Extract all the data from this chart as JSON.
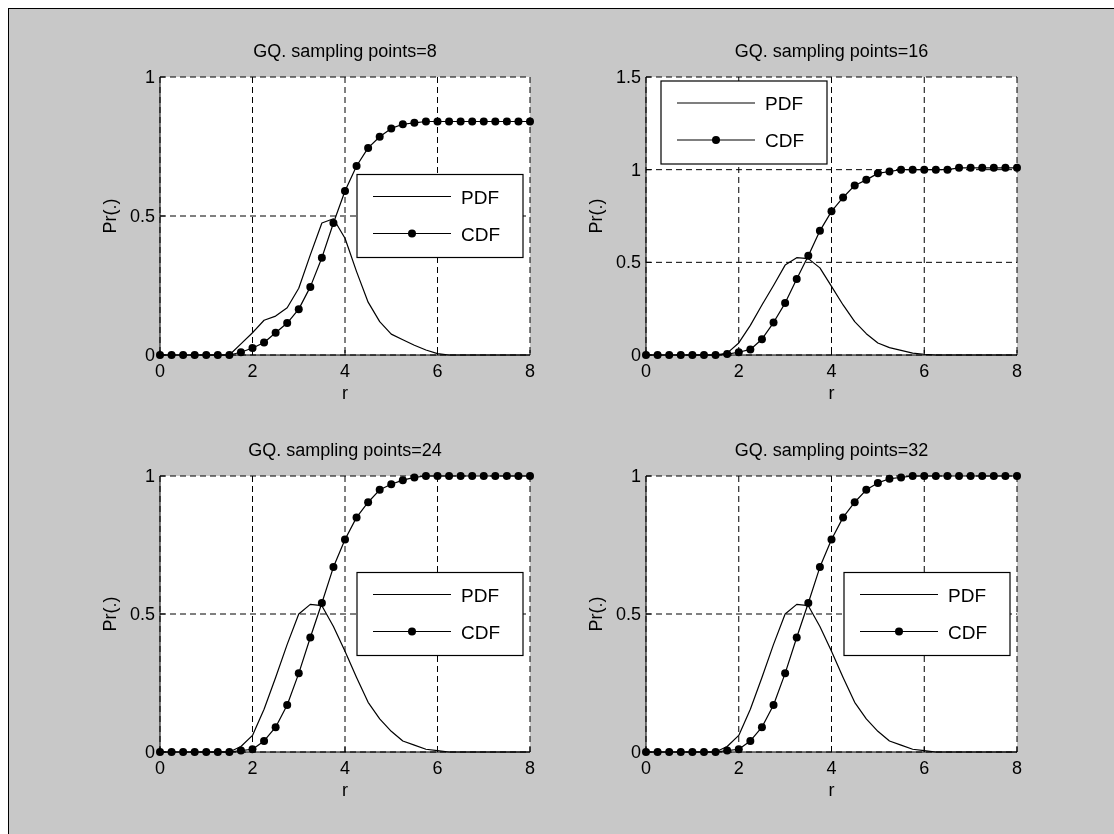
{
  "chart_data": [
    {
      "type": "line",
      "title": "GQ. sampling points=8",
      "xlabel": "r",
      "ylabel": "Pr(.)",
      "xlim": [
        0,
        8
      ],
      "ylim": [
        0,
        1
      ],
      "xticks": [
        0,
        2,
        4,
        6,
        8
      ],
      "yticks": [
        0,
        0.5,
        1
      ],
      "grid": true,
      "legend": "right",
      "x": [
        0,
        0.25,
        0.5,
        0.75,
        1,
        1.25,
        1.5,
        1.75,
        2,
        2.25,
        2.5,
        2.75,
        3,
        3.25,
        3.5,
        3.75,
        4,
        4.25,
        4.5,
        4.75,
        5,
        5.25,
        5.5,
        5.75,
        6,
        6.25,
        6.5,
        6.75,
        7,
        7.25,
        7.5,
        7.75,
        8
      ],
      "series": [
        {
          "name": "PDF",
          "color": "#000000",
          "marker": "none",
          "values": [
            0,
            0,
            0,
            0,
            0,
            0,
            0,
            0.04,
            0.08,
            0.125,
            0.14,
            0.17,
            0.24,
            0.36,
            0.475,
            0.49,
            0.42,
            0.3,
            0.19,
            0.12,
            0.075,
            0.055,
            0.035,
            0.018,
            0.005,
            0,
            0,
            0,
            0,
            0,
            0,
            0,
            0
          ]
        },
        {
          "name": "CDF",
          "color": "#000000",
          "marker": "circle",
          "values": [
            0,
            0,
            0,
            0,
            0,
            0,
            0,
            0.01,
            0.025,
            0.045,
            0.08,
            0.115,
            0.165,
            0.245,
            0.35,
            0.475,
            0.59,
            0.68,
            0.745,
            0.785,
            0.815,
            0.83,
            0.835,
            0.84,
            0.84,
            0.84,
            0.84,
            0.84,
            0.84,
            0.84,
            0.84,
            0.84,
            0.84
          ]
        }
      ]
    },
    {
      "type": "line",
      "title": "GQ. sampling points=16",
      "xlabel": "r",
      "ylabel": "Pr(.)",
      "xlim": [
        0,
        8
      ],
      "ylim": [
        0,
        1.5
      ],
      "xticks": [
        0,
        2,
        4,
        6,
        8
      ],
      "yticks": [
        0,
        0.5,
        1,
        1.5
      ],
      "grid": true,
      "legend": "top left",
      "x": [
        0,
        0.25,
        0.5,
        0.75,
        1,
        1.25,
        1.5,
        1.75,
        2,
        2.25,
        2.5,
        2.75,
        3,
        3.25,
        3.5,
        3.75,
        4,
        4.25,
        4.5,
        4.75,
        5,
        5.25,
        5.5,
        5.75,
        6,
        6.25,
        6.5,
        6.75,
        7,
        7.25,
        7.5,
        7.75,
        8
      ],
      "series": [
        {
          "name": "PDF",
          "color": "#000000",
          "marker": "none",
          "values": [
            0,
            0,
            0,
            0,
            0,
            0,
            0,
            0.01,
            0.065,
            0.16,
            0.27,
            0.375,
            0.485,
            0.525,
            0.52,
            0.47,
            0.37,
            0.27,
            0.18,
            0.115,
            0.065,
            0.04,
            0.025,
            0.01,
            0.004,
            0,
            0,
            0,
            0,
            0,
            0,
            0,
            0
          ]
        },
        {
          "name": "CDF",
          "color": "#000000",
          "marker": "circle",
          "values": [
            0,
            0,
            0,
            0,
            0,
            0,
            0,
            0.005,
            0.015,
            0.03,
            0.085,
            0.175,
            0.28,
            0.41,
            0.535,
            0.67,
            0.775,
            0.85,
            0.915,
            0.945,
            0.98,
            0.99,
            1,
            1,
            1,
            1,
            1,
            1.01,
            1.01,
            1.01,
            1.01,
            1.01,
            1.01
          ]
        }
      ]
    },
    {
      "type": "line",
      "title": "GQ. sampling points=24",
      "xlabel": "r",
      "ylabel": "Pr(.)",
      "xlim": [
        0,
        8
      ],
      "ylim": [
        0,
        1
      ],
      "xticks": [
        0,
        2,
        4,
        6,
        8
      ],
      "yticks": [
        0,
        0.5,
        1
      ],
      "grid": true,
      "legend": "right",
      "x": [
        0,
        0.25,
        0.5,
        0.75,
        1,
        1.25,
        1.5,
        1.75,
        2,
        2.25,
        2.5,
        2.75,
        3,
        3.25,
        3.5,
        3.75,
        4,
        4.25,
        4.5,
        4.75,
        5,
        5.25,
        5.5,
        5.75,
        6,
        6.25,
        6.5,
        6.75,
        7,
        7.25,
        7.5,
        7.75,
        8
      ],
      "series": [
        {
          "name": "PDF",
          "color": "#000000",
          "marker": "none",
          "values": [
            0,
            0,
            0,
            0,
            0,
            0,
            0,
            0.02,
            0.06,
            0.155,
            0.27,
            0.39,
            0.5,
            0.535,
            0.53,
            0.455,
            0.365,
            0.27,
            0.18,
            0.12,
            0.075,
            0.04,
            0.025,
            0.01,
            0.005,
            0,
            0,
            0,
            0,
            0,
            0,
            0,
            0
          ]
        },
        {
          "name": "CDF",
          "color": "#000000",
          "marker": "circle",
          "values": [
            0,
            0,
            0,
            0,
            0,
            0,
            0,
            0.005,
            0.01,
            0.04,
            0.09,
            0.17,
            0.285,
            0.415,
            0.54,
            0.67,
            0.77,
            0.85,
            0.905,
            0.95,
            0.97,
            0.985,
            0.995,
            1,
            1,
            1,
            1,
            1,
            1,
            1,
            1,
            1,
            1
          ]
        }
      ]
    },
    {
      "type": "line",
      "title": "GQ. sampling points=32",
      "xlabel": "r",
      "ylabel": "Pr(.)",
      "xlim": [
        0,
        8
      ],
      "ylim": [
        0,
        1
      ],
      "xticks": [
        0,
        2,
        4,
        6,
        8
      ],
      "yticks": [
        0,
        0.5,
        1
      ],
      "grid": true,
      "legend": "right",
      "x": [
        0,
        0.25,
        0.5,
        0.75,
        1,
        1.25,
        1.5,
        1.75,
        2,
        2.25,
        2.5,
        2.75,
        3,
        3.25,
        3.5,
        3.75,
        4,
        4.25,
        4.5,
        4.75,
        5,
        5.25,
        5.5,
        5.75,
        6,
        6.25,
        6.5,
        6.75,
        7,
        7.25,
        7.5,
        7.75,
        8
      ],
      "series": [
        {
          "name": "PDF",
          "color": "#000000",
          "marker": "none",
          "values": [
            0,
            0,
            0,
            0,
            0,
            0,
            0,
            0.02,
            0.06,
            0.155,
            0.27,
            0.39,
            0.5,
            0.535,
            0.53,
            0.455,
            0.365,
            0.27,
            0.18,
            0.12,
            0.075,
            0.04,
            0.025,
            0.01,
            0.005,
            0,
            0,
            0,
            0,
            0,
            0,
            0,
            0
          ]
        },
        {
          "name": "CDF",
          "color": "#000000",
          "marker": "circle",
          "values": [
            0,
            0,
            0,
            0,
            0,
            0,
            0,
            0.005,
            0.01,
            0.04,
            0.09,
            0.17,
            0.285,
            0.415,
            0.54,
            0.67,
            0.77,
            0.85,
            0.905,
            0.95,
            0.975,
            0.99,
            0.995,
            1,
            1,
            1,
            1,
            1,
            1,
            1,
            1,
            1,
            1
          ]
        }
      ]
    }
  ]
}
